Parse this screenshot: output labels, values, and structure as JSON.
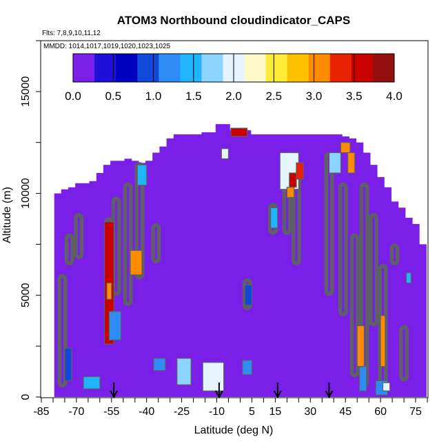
{
  "chart_data": {
    "type": "heatmap",
    "title": "ATOM3 Northbound cloudindicator_CAPS",
    "flights_text": "Flts: 7,8,9,10,11,12",
    "dates_text": "MMDD: 1014,1017,1019,1020,1023,1025",
    "xlabel": "Latitude (deg N)",
    "ylabel": "Altitude (m)",
    "xlim": [
      -85,
      80
    ],
    "ylim": [
      0,
      17500
    ],
    "x_ticks": [
      -85,
      -70,
      -55,
      -40,
      -25,
      -10,
      5,
      15,
      30,
      45,
      60,
      75
    ],
    "x_tick_labels": [
      "-85",
      "-70",
      "-55",
      "-40",
      "-25",
      "-10",
      "5",
      "15",
      "30",
      "45",
      "60",
      "75"
    ],
    "y_ticks": [
      0,
      5000,
      10000,
      15000
    ],
    "y_tick_labels": [
      "0",
      "5000",
      "10000",
      "15000"
    ],
    "colorbar": {
      "min": 0.0,
      "max": 4.0,
      "ticks": [
        0.0,
        0.5,
        1.0,
        1.5,
        2.0,
        2.5,
        3.0,
        3.5,
        4.0
      ],
      "tick_labels": [
        "0.0",
        "0.5",
        "1.0",
        "1.5",
        "2.0",
        "2.5",
        "3.0",
        "3.5",
        "4.0"
      ],
      "colors": [
        "#7a1fe8",
        "#1e10d8",
        "#0000c0",
        "#1048d8",
        "#2d8cf5",
        "#20b4ff",
        "#8cd4ff",
        "#e6f4ff",
        "#fff8c8",
        "#ffea3a",
        "#ffc000",
        "#ff8c00",
        "#e82200",
        "#c80000",
        "#941010"
      ]
    },
    "background_value": 0.0,
    "coverage_profile": {
      "lat": [
        -78,
        -75,
        -72,
        -69,
        -66,
        -63,
        -60,
        -57,
        -54,
        -51,
        -48,
        -45,
        -42,
        -39,
        -36,
        -33,
        -30,
        -27,
        -24,
        -21,
        -18,
        -15,
        -12,
        -9,
        -6,
        -3,
        0,
        3,
        6,
        9,
        12,
        15,
        18,
        21,
        24,
        27,
        30,
        33,
        36,
        39,
        42,
        45,
        48,
        51,
        54,
        57,
        60,
        63,
        66,
        69,
        72,
        75,
        78
      ],
      "top_alt_m": [
        10000,
        10200,
        10300,
        10500,
        10500,
        10600,
        11000,
        11400,
        11600,
        11600,
        11700,
        11600,
        11500,
        11600,
        12000,
        12300,
        12700,
        12900,
        12900,
        12900,
        12900,
        13000,
        13000,
        13400,
        13400,
        13100,
        13100,
        13100,
        12900,
        12900,
        12900,
        12900,
        12900,
        12900,
        12900,
        12900,
        12900,
        12900,
        12900,
        12900,
        12900,
        12800,
        12700,
        12500,
        12000,
        11400,
        10800,
        10300,
        9600,
        9300,
        8800,
        8500,
        7500
      ]
    },
    "cloud_features": [
      {
        "lat_min": -58,
        "lat_max": -54,
        "alt_min": 2600,
        "alt_max": 8600,
        "value": 3.6
      },
      {
        "lat_min": -57,
        "lat_max": -55,
        "alt_min": 4800,
        "alt_max": 5600,
        "value": 3.0
      },
      {
        "lat_min": -56,
        "lat_max": -51,
        "alt_min": 2800,
        "alt_max": 4200,
        "value": 1.2
      },
      {
        "lat_min": -47,
        "lat_max": -42,
        "alt_min": 6000,
        "alt_max": 7200,
        "value": 3.0
      },
      {
        "lat_min": -44,
        "lat_max": -40,
        "alt_min": 10400,
        "alt_max": 11400,
        "value": 1.4
      },
      {
        "lat_min": -75,
        "lat_max": -72,
        "alt_min": 800,
        "alt_max": 2400,
        "value": 1.0
      },
      {
        "lat_min": -67,
        "lat_max": -60,
        "alt_min": 400,
        "alt_max": 1000,
        "value": 1.5
      },
      {
        "lat_min": -37,
        "lat_max": -32,
        "alt_min": 1300,
        "alt_max": 1900,
        "value": 1.3
      },
      {
        "lat_min": -27,
        "lat_max": -21,
        "alt_min": 600,
        "alt_max": 1900,
        "value": 1.8
      },
      {
        "lat_min": -16,
        "lat_max": -7,
        "alt_min": 300,
        "alt_max": 1700,
        "value": 1.9
      },
      {
        "lat_min": -8,
        "lat_max": -5,
        "alt_min": 11700,
        "alt_max": 12200,
        "value": 1.9
      },
      {
        "lat_min": -4,
        "lat_max": 3,
        "alt_min": 12800,
        "alt_max": 13200,
        "value": 3.6
      },
      {
        "lat_min": 1,
        "lat_max": 5,
        "alt_min": 1100,
        "alt_max": 1800,
        "value": 1.3
      },
      {
        "lat_min": 2,
        "lat_max": 5,
        "alt_min": 4500,
        "alt_max": 5500,
        "value": 1.0
      },
      {
        "lat_min": 13,
        "lat_max": 16,
        "alt_min": 8300,
        "alt_max": 9300,
        "value": 1.5
      },
      {
        "lat_min": 17,
        "lat_max": 25,
        "alt_min": 10200,
        "alt_max": 12000,
        "value": 2.0
      },
      {
        "lat_min": 21,
        "lat_max": 24,
        "alt_min": 10300,
        "alt_max": 11000,
        "value": 3.5
      },
      {
        "lat_min": 20,
        "lat_max": 23,
        "alt_min": 9800,
        "alt_max": 10300,
        "value": 3.0
      },
      {
        "lat_min": 24,
        "lat_max": 27,
        "alt_min": 10700,
        "alt_max": 11500,
        "value": 3.3
      },
      {
        "lat_min": 38,
        "lat_max": 43,
        "alt_min": 11000,
        "alt_max": 12000,
        "value": 1.8
      },
      {
        "lat_min": 43,
        "lat_max": 47,
        "alt_min": 12000,
        "alt_max": 12500,
        "value": 3.0
      },
      {
        "lat_min": 46,
        "lat_max": 49,
        "alt_min": 11000,
        "alt_max": 12000,
        "value": 3.1
      },
      {
        "lat_min": 50,
        "lat_max": 53,
        "alt_min": 1500,
        "alt_max": 3500,
        "value": 3.0
      },
      {
        "lat_min": 51,
        "lat_max": 54,
        "alt_min": 300,
        "alt_max": 1500,
        "value": 1.2
      },
      {
        "lat_min": 60,
        "lat_max": 62,
        "alt_min": 1500,
        "alt_max": 4000,
        "value": 3.1
      },
      {
        "lat_min": 58,
        "lat_max": 63,
        "alt_min": 100,
        "alt_max": 800,
        "value": 1.3
      },
      {
        "lat_min": 61,
        "lat_max": 64,
        "alt_min": 300,
        "alt_max": 700,
        "value": 2.0
      },
      {
        "lat_min": 71,
        "lat_max": 73,
        "alt_min": 5600,
        "alt_max": 6100,
        "value": 1.4
      }
    ],
    "contour_regions": [
      {
        "lat": -76,
        "alt_lo": 500,
        "alt_hi": 6000
      },
      {
        "lat": -73,
        "alt_lo": 6500,
        "alt_hi": 8000
      },
      {
        "lat": -69,
        "alt_lo": 6800,
        "alt_hi": 9000
      },
      {
        "lat": -56,
        "alt_lo": 2600,
        "alt_hi": 8800
      },
      {
        "lat": -53,
        "alt_lo": 5000,
        "alt_hi": 9800
      },
      {
        "lat": -48,
        "alt_lo": 4500,
        "alt_hi": 10500
      },
      {
        "lat": -43,
        "alt_lo": 5800,
        "alt_hi": 11500
      },
      {
        "lat": -36,
        "alt_lo": 6600,
        "alt_hi": 8500
      },
      {
        "lat": 3,
        "alt_lo": 4300,
        "alt_hi": 5800
      },
      {
        "lat": 14,
        "alt_lo": 8000,
        "alt_hi": 9500
      },
      {
        "lat": 20,
        "alt_lo": 8000,
        "alt_hi": 12000
      },
      {
        "lat": 24,
        "alt_lo": 6500,
        "alt_hi": 11000
      },
      {
        "lat": 38,
        "alt_lo": 5000,
        "alt_hi": 12000
      },
      {
        "lat": 44,
        "alt_lo": 4000,
        "alt_hi": 10500
      },
      {
        "lat": 49,
        "alt_lo": 1000,
        "alt_hi": 8000
      },
      {
        "lat": 53,
        "alt_lo": 500,
        "alt_hi": 10500
      },
      {
        "lat": 57,
        "alt_lo": 3500,
        "alt_hi": 9000
      },
      {
        "lat": 61,
        "alt_lo": 500,
        "alt_hi": 6500
      },
      {
        "lat": 66,
        "alt_lo": 6500,
        "alt_hi": 7500
      },
      {
        "lat": 70,
        "alt_lo": 800,
        "alt_hi": 3500
      }
    ],
    "profile_markers_lat": [
      -54,
      -9,
      16,
      38
    ]
  }
}
